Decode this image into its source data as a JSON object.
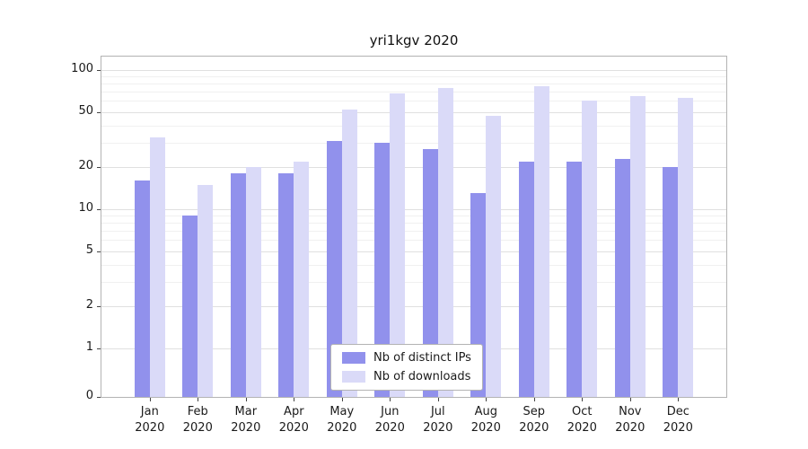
{
  "chart_data": {
    "type": "bar",
    "title": "yri1kgv 2020",
    "year": "2020",
    "months": [
      "Jan",
      "Feb",
      "Mar",
      "Apr",
      "May",
      "Jun",
      "Jul",
      "Aug",
      "Sep",
      "Oct",
      "Nov",
      "Dec"
    ],
    "series": [
      {
        "name": "Nb of distinct IPs",
        "color": "#9191ec",
        "values": [
          16,
          9,
          18,
          18,
          31,
          30,
          27,
          13,
          22,
          22,
          23,
          20
        ]
      },
      {
        "name": "Nb of downloads",
        "color": "#dadaf8",
        "values": [
          33,
          15,
          20,
          22,
          52,
          68,
          74,
          47,
          77,
          60,
          65,
          63
        ]
      }
    ],
    "yscale": "symlog",
    "ylim": [
      0,
      125
    ],
    "yticks": [
      100,
      50,
      20,
      10,
      5,
      2,
      1,
      0
    ],
    "minor_yticks": [
      3,
      4,
      6,
      7,
      8,
      9,
      30,
      40,
      60,
      70,
      80,
      90
    ],
    "grid": true,
    "legend_position": "lower center"
  },
  "colors": {
    "grid_major": "#e0e0e0",
    "grid_minor": "#f0f0f0",
    "spine": "#b3b3b3",
    "background": "#ffffff"
  }
}
